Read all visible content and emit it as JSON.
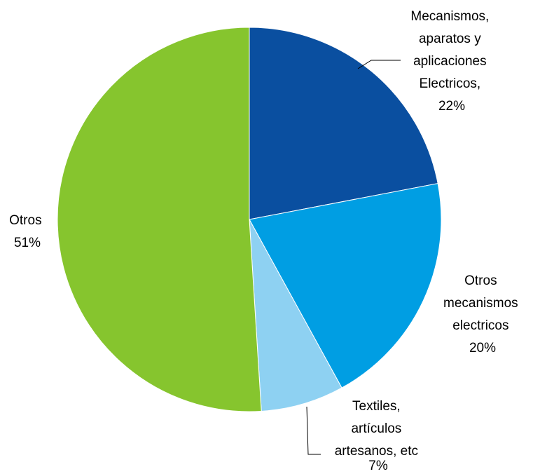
{
  "chart_data": {
    "type": "pie",
    "title": "",
    "start_angle_deg": 0,
    "direction": "clockwise",
    "slices": [
      {
        "label": "Mecanismos, aparatos y aplicaciones Electricos",
        "value": 22,
        "value_label": "22%",
        "color": "#0a4fa0"
      },
      {
        "label": "Otros mecanismos electricos",
        "value": 20,
        "value_label": "20%",
        "color": "#009ee3"
      },
      {
        "label": "Textiles, artículos artesanos, etc",
        "value": 7,
        "value_label": "7%",
        "color": "#8ed1f2"
      },
      {
        "label": "Otros",
        "value": 51,
        "value_label": "51%",
        "color": "#86c52e"
      }
    ],
    "legend": "none",
    "label_lines": [
      [
        "Mecanismos,",
        "aparatos y",
        "aplicaciones",
        "Electricos,",
        "22%"
      ],
      [
        "Otros",
        "mecanismos",
        "electricos",
        "20%"
      ],
      [
        "Textiles,",
        "artículos",
        "artesanos, etc",
        "7%"
      ],
      [
        "Otros",
        "51%"
      ]
    ]
  }
}
